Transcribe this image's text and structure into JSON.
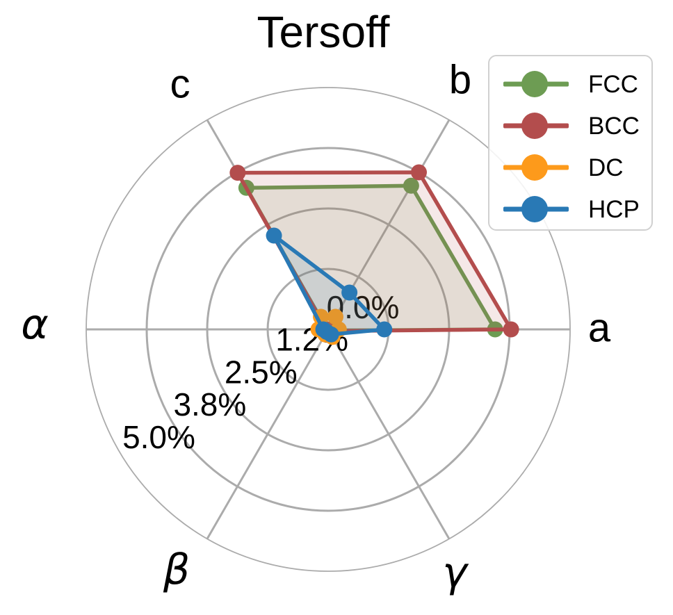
{
  "title": "Tersoff",
  "chart_data": {
    "type": "radar",
    "title": "Tersoff",
    "unit": "%",
    "categories": [
      "a",
      "b",
      "c",
      "α",
      "β",
      "γ"
    ],
    "axis_range": [
      0,
      5.0
    ],
    "radial_ticks": [
      0,
      1.25,
      2.5,
      3.75,
      5.0
    ],
    "radial_tick_labels": [
      "0.0%",
      "1.2%",
      "2.5%",
      "3.8%",
      "5.0%"
    ],
    "grid": true,
    "grid_color": "#ababab",
    "legend_position": "upper right",
    "series": [
      {
        "name": "FCC",
        "color": "#6d9c53",
        "values": [
          3.45,
          3.43,
          3.38,
          0.03,
          0.03,
          0.03
        ]
      },
      {
        "name": "BCC",
        "color": "#b34d4d",
        "values": [
          3.78,
          3.75,
          3.74,
          0.04,
          0.04,
          0.04
        ]
      },
      {
        "name": "DC",
        "color": "#fd9a1b",
        "values": [
          0.22,
          0.3,
          0.3,
          0.2,
          0.12,
          0.18
        ]
      },
      {
        "name": "HCP",
        "color": "#2979b5",
        "values": [
          1.16,
          0.88,
          2.24,
          0.1,
          0.06,
          0.12
        ]
      }
    ]
  },
  "legend": {
    "items": [
      {
        "label": "FCC"
      },
      {
        "label": "BCC"
      },
      {
        "label": "DC"
      },
      {
        "label": "HCP"
      }
    ]
  }
}
